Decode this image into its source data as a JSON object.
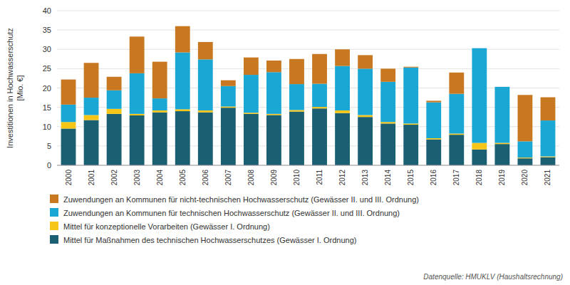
{
  "chart_data": {
    "type": "bar",
    "stacked": true,
    "categories": [
      "2000",
      "2001",
      "2002",
      "2003",
      "2004",
      "2005",
      "2006",
      "2007",
      "2008",
      "2009",
      "2010",
      "2011",
      "2012",
      "2013",
      "2014",
      "2015",
      "2016",
      "2017",
      "2018",
      "2019",
      "2020",
      "2021"
    ],
    "series": [
      {
        "name": "Mittel für Maßnahmen des technischen Hochwasserschutzes (Gewässer I. Ordnung)",
        "color": "#1a5f72",
        "values": [
          9.5,
          11.7,
          13.3,
          12.9,
          13.7,
          14.0,
          13.7,
          14.9,
          13.3,
          13.0,
          13.9,
          14.7,
          13.5,
          12.5,
          10.8,
          10.5,
          6.7,
          7.9,
          4.1,
          5.5,
          1.8,
          2.1
        ]
      },
      {
        "name": "Mittel für konzeptionelle Vorarbeiten (Gewässer I. Ordnung)",
        "color": "#f5c518",
        "values": [
          1.7,
          1.3,
          1.3,
          0.4,
          0.5,
          0.5,
          0.5,
          0.3,
          0.3,
          0.3,
          0.4,
          0.4,
          0.7,
          0.5,
          0.4,
          0.3,
          0.3,
          0.3,
          1.7,
          0.3,
          0.2,
          0.2
        ]
      },
      {
        "name": "Zuwendungen an Kommunen für technischen Hochwasserschutz (Gewässer II. und III. Ordnung)",
        "color": "#1aa7d4",
        "values": [
          4.5,
          4.5,
          4.8,
          10.5,
          3.1,
          14.7,
          13.2,
          5.3,
          9.8,
          10.8,
          6.7,
          6.0,
          11.5,
          12.0,
          10.4,
          14.5,
          9.3,
          10.3,
          24.5,
          14.5,
          4.2,
          9.3
        ]
      },
      {
        "name": "Zuwendungen an Kommunen für nicht-technischen Hochwasserschutz (Gewässer II. und III. Ordnung)",
        "color": "#c87820",
        "values": [
          6.5,
          9.0,
          3.5,
          9.5,
          9.5,
          6.8,
          4.5,
          1.5,
          4.5,
          3.0,
          6.5,
          7.7,
          4.3,
          3.5,
          3.4,
          0.2,
          0.4,
          5.5,
          0.0,
          0.0,
          12.0,
          6.0
        ]
      }
    ],
    "y_label": "Investitionen in Hochwasserschutz\n[Mio. €]",
    "ylim": [
      0,
      40
    ],
    "yticks": [
      0,
      5,
      10,
      15,
      20,
      25,
      30,
      35,
      40
    ],
    "grid": true,
    "legend": "bottom",
    "annotations": [
      "Datenquelle: HMUKLV (Haushaltsrechnung)"
    ]
  }
}
